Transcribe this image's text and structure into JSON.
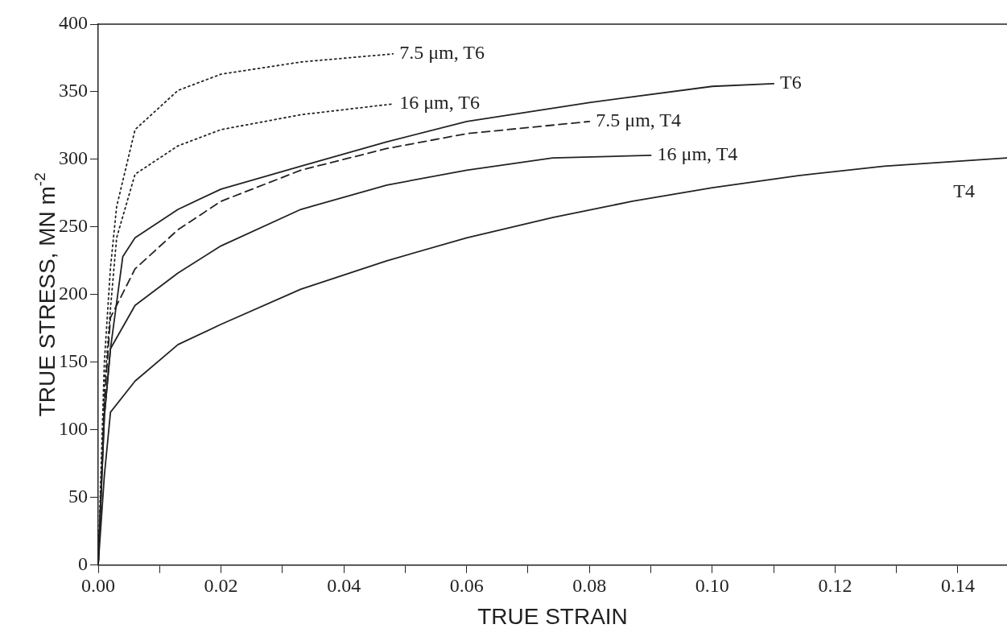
{
  "chart_data": {
    "type": "line",
    "xlabel": "TRUE STRAIN",
    "ylabel": "TRUE STRESS, MN m$^{-2}$",
    "xlim": [
      0,
      0.148
    ],
    "ylim": [
      0,
      400
    ],
    "xticks": [
      {
        "value": 0,
        "label": "0.00"
      },
      {
        "value": 0.01,
        "label": null
      },
      0.02,
      {
        "value": 0.03,
        "label": null
      },
      0.04,
      {
        "value": 0.05,
        "label": null
      },
      0.06,
      {
        "value": 0.07,
        "label": null
      },
      0.08,
      {
        "value": 0.09,
        "label": null
      },
      {
        "value": 0.1,
        "label": "0.10"
      },
      {
        "value": 0.11,
        "label": null
      },
      0.12,
      {
        "value": 0.13,
        "label": null
      },
      0.14
    ],
    "yticks": [
      0,
      50,
      100,
      150,
      200,
      250,
      300,
      350,
      400
    ],
    "grid": false,
    "legend": false,
    "marker": "none",
    "series": [
      {
        "name": "7.5 μm, T6",
        "color": "#222222",
        "line_style": "dotted",
        "x": [
          0,
          0.001,
          0.002,
          0.003,
          0.006,
          0.013,
          0.02,
          0.033,
          0.048
        ],
        "values": [
          0,
          150,
          220,
          265,
          322,
          351,
          363,
          372,
          378
        ]
      },
      {
        "name": "16 μm, T6",
        "color": "#222222",
        "line_style": "dotted",
        "x": [
          0,
          0.001,
          0.002,
          0.003,
          0.006,
          0.013,
          0.02,
          0.033,
          0.048
        ],
        "values": [
          0,
          130,
          190,
          242,
          289,
          310,
          322,
          333,
          341
        ]
      },
      {
        "name": "T6",
        "color": "#222222",
        "line_style": "solid",
        "x": [
          0,
          0.001,
          0.002,
          0.004,
          0.006,
          0.013,
          0.02,
          0.033,
          0.047,
          0.06,
          0.08,
          0.1,
          0.11
        ],
        "values": [
          0,
          110,
          160,
          228,
          242,
          263,
          278,
          295,
          313,
          328,
          342,
          354,
          356
        ]
      },
      {
        "name": "7.5 μm, T4",
        "color": "#222222",
        "line_style": "dashed",
        "x": [
          0,
          0.001,
          0.002,
          0.006,
          0.013,
          0.02,
          0.033,
          0.047,
          0.06,
          0.08
        ],
        "values": [
          0,
          120,
          183,
          219,
          248,
          269,
          292,
          308,
          319,
          328
        ]
      },
      {
        "name": "16 μm, T4",
        "color": "#222222",
        "line_style": "solid",
        "x": [
          0,
          0.001,
          0.002,
          0.006,
          0.013,
          0.02,
          0.033,
          0.047,
          0.06,
          0.074,
          0.09
        ],
        "values": [
          0,
          110,
          160,
          192,
          216,
          236,
          263,
          281,
          292,
          301,
          303
        ]
      },
      {
        "name": "T4",
        "color": "#222222",
        "line_style": "solid",
        "x": [
          0,
          0.001,
          0.002,
          0.006,
          0.013,
          0.02,
          0.033,
          0.047,
          0.06,
          0.074,
          0.087,
          0.1,
          0.114,
          0.128,
          0.148
        ],
        "values": [
          0,
          66,
          113,
          136,
          163,
          178,
          204,
          225,
          242,
          257,
          269,
          279,
          288,
          295,
          301
        ]
      }
    ]
  }
}
